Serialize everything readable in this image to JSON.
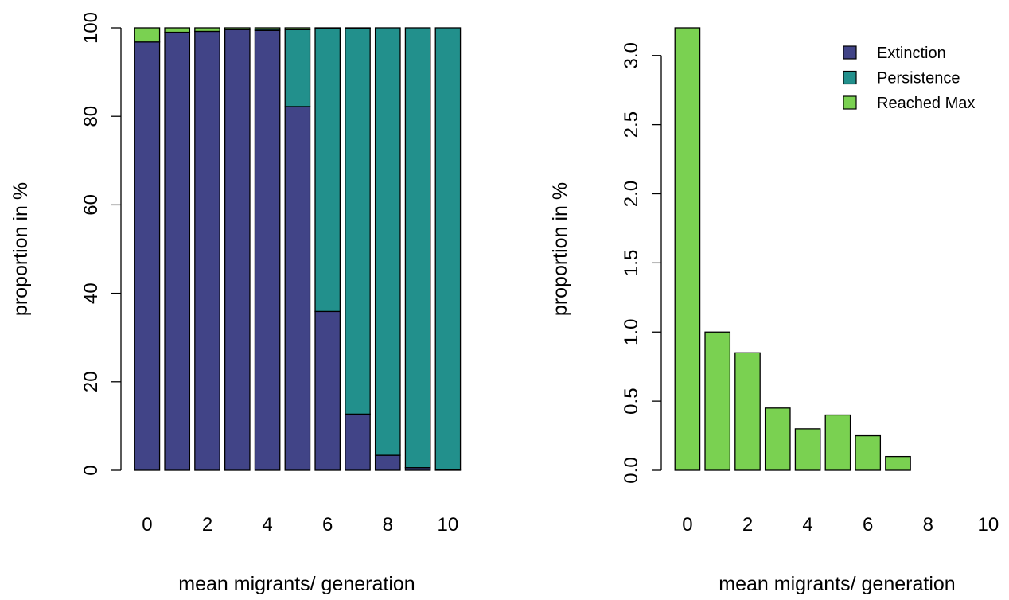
{
  "chart_data": [
    {
      "type": "bar",
      "stacked": true,
      "categories": [
        "0",
        "1",
        "2",
        "3",
        "4",
        "5",
        "6",
        "7",
        "8",
        "9",
        "10"
      ],
      "x_tick_labels": [
        "0",
        "2",
        "4",
        "6",
        "8",
        "10"
      ],
      "xlabel": "mean migrants/ generation",
      "ylabel": "proportion in %",
      "ylim": [
        0,
        100
      ],
      "y_ticks": [
        "0",
        "20",
        "40",
        "60",
        "80",
        "100"
      ],
      "series": [
        {
          "name": "Extinction",
          "color": "#414487",
          "values": [
            96.8,
            99.0,
            99.2,
            99.6,
            99.4,
            82.2,
            35.9,
            12.7,
            3.4,
            0.6,
            0.2
          ]
        },
        {
          "name": "Persistence",
          "color": "#22908C",
          "values": [
            0.0,
            0.0,
            0.0,
            0.0,
            0.3,
            17.4,
            63.9,
            87.2,
            96.6,
            99.4,
            99.8
          ]
        },
        {
          "name": "Reached Max",
          "color": "#7AD151",
          "values": [
            3.2,
            1.0,
            0.8,
            0.4,
            0.3,
            0.4,
            0.2,
            0.1,
            0.0,
            0.0,
            0.0
          ]
        }
      ]
    },
    {
      "type": "bar",
      "categories": [
        "0",
        "1",
        "2",
        "3",
        "4",
        "5",
        "6",
        "7",
        "8",
        "9",
        "10"
      ],
      "x_tick_labels": [
        "0",
        "2",
        "4",
        "6",
        "8",
        "10"
      ],
      "xlabel": "mean migrants/ generation",
      "ylabel": "proportion in %",
      "ylim": [
        0,
        3.2
      ],
      "y_ticks": [
        "0.0",
        "0.5",
        "1.0",
        "1.5",
        "2.0",
        "2.5",
        "3.0"
      ],
      "legend": {
        "placement": "top-right",
        "entries": [
          "Extinction",
          "Persistence",
          "Reached Max"
        ]
      },
      "series": [
        {
          "name": "Reached Max",
          "color": "#7AD151",
          "values": [
            3.2,
            1.0,
            0.85,
            0.45,
            0.3,
            0.4,
            0.25,
            0.1,
            0.0,
            0.0,
            0.0
          ]
        }
      ]
    }
  ]
}
